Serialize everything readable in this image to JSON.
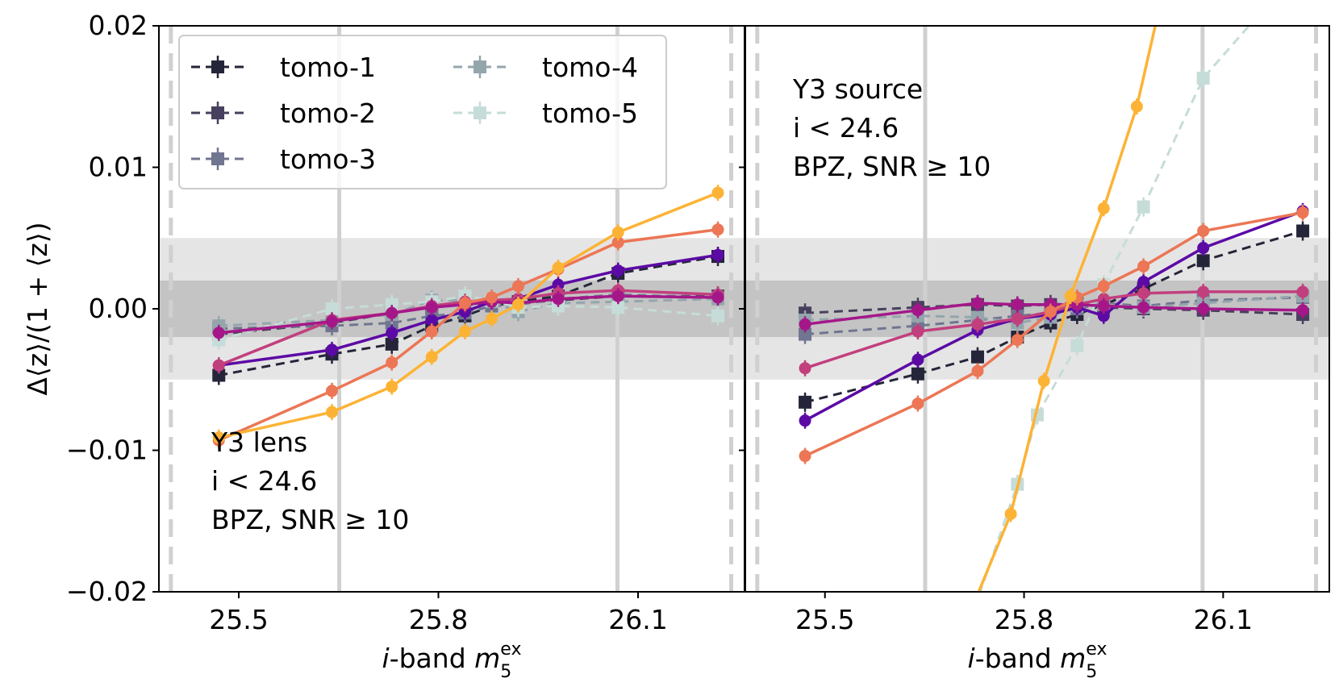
{
  "chart_data": {
    "ylabel": "Δ⟨z⟩/(1 + ⟨z⟩)",
    "ylim": [
      -0.02,
      0.02
    ],
    "xlim": [
      25.38,
      26.26
    ],
    "y_ticks": [
      {
        "value": 0.02,
        "label": "0.02"
      },
      {
        "value": 0.01,
        "label": "0.01"
      },
      {
        "value": 0.0,
        "label": "0.00"
      },
      {
        "value": -0.01,
        "label": "−0.01"
      },
      {
        "value": -0.02,
        "label": "−0.02"
      }
    ],
    "x_ticks": [
      {
        "value": 25.5,
        "label": "25.5"
      },
      {
        "value": 25.8,
        "label": "25.8"
      },
      {
        "value": 26.1,
        "label": "26.1"
      }
    ],
    "xlabel": {
      "prefix": "i",
      "middle": "-band ",
      "var": "m",
      "sub": "5",
      "sup": "ex"
    },
    "bands": {
      "inner": [
        -0.002,
        0.002
      ],
      "outer": [
        -0.005,
        0.005
      ]
    },
    "vlines_solid": [
      25.651,
      26.069
    ],
    "vlines_dashed": [
      25.398,
      26.24
    ],
    "colors": {
      "tomo1": "#25253a",
      "tomo2": "#48405e",
      "tomo3": "#707590",
      "tomo4": "#94a6ac",
      "tomo5": "#c6dcd8",
      "s1": "#5c0aa5",
      "s2": "#c23f7e",
      "s3": "#a51789",
      "s4": "#ec7655",
      "s5": "#fcb335",
      "band_inner": "#c4c4c4",
      "band_outer": "#e5e5e5",
      "vline": "#d0d0d0"
    },
    "legend": {
      "placement": "top-left",
      "entries": [
        {
          "label": "tomo-1",
          "color_key": "tomo1"
        },
        {
          "label": "tomo-4",
          "color_key": "tomo4"
        },
        {
          "label": "tomo-2",
          "color_key": "tomo2"
        },
        {
          "label": "tomo-5",
          "color_key": "tomo5"
        },
        {
          "label": "tomo-3",
          "color_key": "tomo3"
        }
      ]
    },
    "panels": [
      {
        "annotation": [
          "Y3 lens",
          "i < 24.6",
          "BPZ, SNR ≥ 10"
        ],
        "annotation_placement": "bottom-left",
        "x": [
          25.47,
          25.64,
          25.73,
          25.79,
          25.84,
          25.88,
          25.92,
          25.98,
          26.07,
          26.22
        ],
        "dashed_series": [
          {
            "name": "tomo-1",
            "color_key": "tomo1",
            "values": [
              -0.0047,
              -0.0032,
              -0.0025,
              -0.0012,
              -0.0005,
              0.0002,
              0.0005,
              0.0009,
              0.0025,
              0.0037
            ]
          },
          {
            "name": "tomo-2",
            "color_key": "tomo2",
            "values": [
              -0.0018,
              -0.001,
              -0.0003,
              0.0001,
              0.0003,
              0.0003,
              0.0004,
              0.0006,
              0.0009,
              0.0009
            ]
          },
          {
            "name": "tomo-3",
            "color_key": "tomo3",
            "values": [
              -0.0014,
              -0.0012,
              -0.001,
              -0.0005,
              -0.0003,
              0.0002,
              0.0003,
              0.0007,
              0.001,
              0.0008
            ]
          },
          {
            "name": "tomo-4",
            "color_key": "tomo4",
            "values": [
              -0.0012,
              -0.0008,
              -0.0004,
              0.0006,
              0.0006,
              0.0005,
              -0.0002,
              0.0004,
              0.0005,
              0.0007
            ]
          },
          {
            "name": "tomo-5",
            "color_key": "tomo5",
            "values": [
              -0.0022,
              0.0,
              0.0003,
              0.0005,
              0.0009,
              0.0006,
              0.0001,
              0.0002,
              0.0001,
              -0.0005
            ]
          }
        ],
        "solid_series": [
          {
            "color_key": "s1",
            "values": [
              -0.004,
              -0.0029,
              -0.0017,
              -0.0008,
              -0.0002,
              0.0005,
              0.0007,
              0.0017,
              0.0027,
              0.0038
            ]
          },
          {
            "color_key": "s2",
            "values": [
              -0.004,
              -0.0008,
              -0.0003,
              0.0002,
              0.0005,
              0.0006,
              0.0007,
              0.0011,
              0.0013,
              0.001
            ]
          },
          {
            "color_key": "s3",
            "values": [
              -0.0017,
              -0.0009,
              -0.0003,
              0.0001,
              0.0003,
              0.0005,
              0.0004,
              0.0007,
              0.0009,
              0.0008
            ]
          },
          {
            "color_key": "s4",
            "values": [
              -0.0093,
              -0.0058,
              -0.0038,
              -0.0016,
              0.0004,
              0.0008,
              0.0016,
              0.0028,
              0.0047,
              0.0056
            ]
          },
          {
            "color_key": "s5",
            "values": [
              -0.0091,
              -0.0073,
              -0.0055,
              -0.0034,
              -0.0016,
              -0.0007,
              0.0003,
              0.0029,
              0.0054,
              0.0082
            ]
          }
        ]
      },
      {
        "annotation": [
          "Y3 source",
          "i < 24.6",
          "BPZ, SNR ≥ 10"
        ],
        "annotation_placement": "top-left",
        "x": [
          25.47,
          25.64,
          25.73,
          25.79,
          25.84,
          25.88,
          25.92,
          25.98,
          26.07,
          26.22
        ],
        "dashed_series": [
          {
            "name": "tomo-1",
            "color_key": "tomo1",
            "values": [
              -0.0066,
              -0.0046,
              -0.0034,
              -0.002,
              -0.001,
              -0.0004,
              0.0003,
              0.0014,
              0.0034,
              0.0055
            ]
          },
          {
            "name": "tomo-2",
            "color_key": "tomo2",
            "values": [
              -0.0003,
              0.0001,
              0.0003,
              0.0002,
              0.0003,
              0.0004,
              0.0001,
              0.0,
              -0.0001,
              -0.0004
            ]
          },
          {
            "name": "tomo-3",
            "color_key": "tomo3",
            "values": [
              -0.0018,
              -0.0012,
              -0.0008,
              -0.0005,
              -0.0003,
              0.0,
              0.0004,
              0.0002,
              0.0006,
              0.0008
            ]
          },
          {
            "name": "tomo-4",
            "color_key": "tomo4",
            "values": [
              -0.0008,
              -0.0005,
              -0.0006,
              -0.001,
              -0.0006,
              0.0002,
              0.0003,
              0.0001,
              0.0004,
              0.0009
            ]
          },
          {
            "name": "tomo-5",
            "color_key": "tomo5",
            "x": [
              25.69,
              25.79,
              25.82,
              25.88,
              25.92,
              25.98,
              26.07,
              26.18
            ],
            "values": [
              -0.026,
              -0.0124,
              -0.0075,
              -0.0026,
              0.0017,
              0.0072,
              0.0163,
              0.0222
            ]
          }
        ],
        "solid_series": [
          {
            "color_key": "s1",
            "values": [
              -0.0079,
              -0.0036,
              -0.0015,
              -0.0007,
              -0.0004,
              0.0001,
              -0.0005,
              0.0019,
              0.0043,
              0.0069
            ]
          },
          {
            "color_key": "s2",
            "values": [
              -0.0042,
              -0.0016,
              -0.0011,
              -0.0007,
              -0.0002,
              0.0003,
              0.0007,
              0.0011,
              0.0012,
              0.0012
            ]
          },
          {
            "color_key": "s3",
            "values": [
              -0.0011,
              -0.0001,
              0.0004,
              0.0003,
              0.0003,
              0.0003,
              0.0002,
              0.0001,
              0.0,
              -0.0001
            ]
          },
          {
            "color_key": "s4",
            "values": [
              -0.0104,
              -0.0067,
              -0.0044,
              -0.0022,
              -0.0002,
              0.0008,
              0.0016,
              0.003,
              0.0055,
              0.0068
            ]
          },
          {
            "color_key": "s5",
            "x": [
              25.67,
              25.78,
              25.83,
              25.87,
              25.92,
              25.97,
              26.01
            ],
            "values": [
              -0.027,
              -0.0145,
              -0.0051,
              0.0009,
              0.0071,
              0.0143,
              0.0225
            ]
          }
        ]
      }
    ]
  }
}
